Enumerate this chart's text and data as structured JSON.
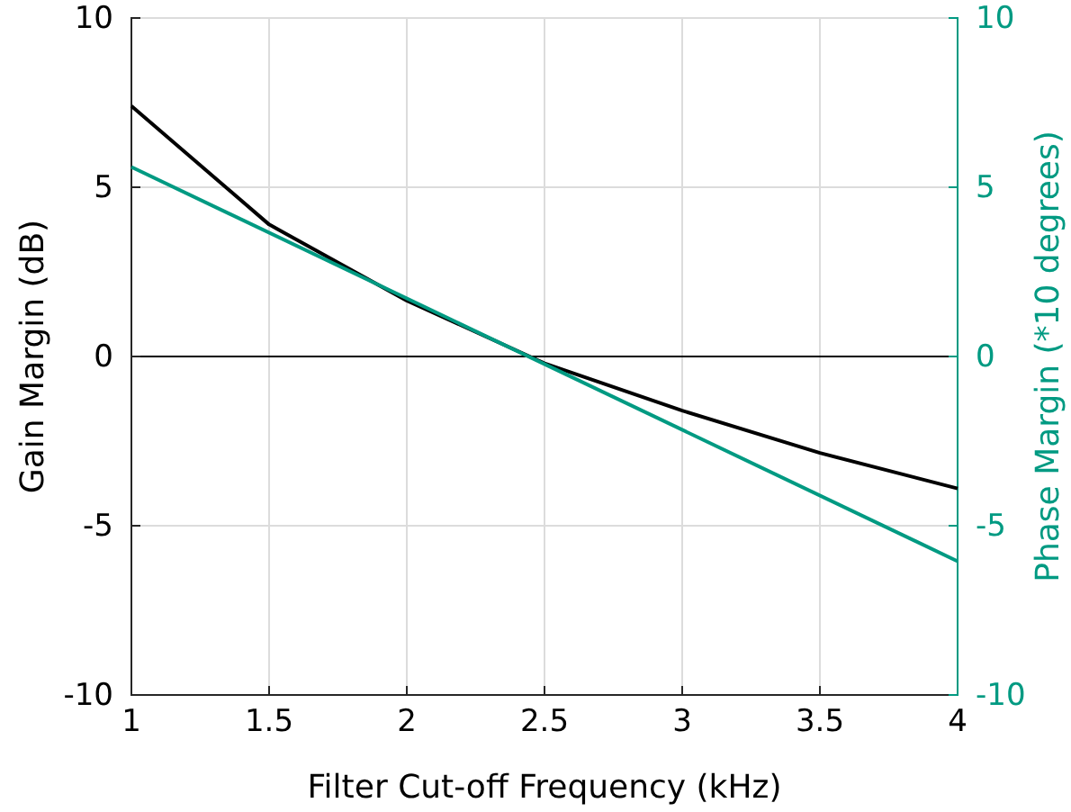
{
  "chart_data": {
    "type": "line",
    "xlabel": "Filter Cut-off Frequency (kHz)",
    "ylabel": "Gain Margin (dB)",
    "y2label": "Phase Margin (*10 degrees)",
    "xlim": [
      1,
      4
    ],
    "xticks": [
      1,
      1.5,
      2,
      2.5,
      3,
      3.5,
      4
    ],
    "ylim": [
      -10,
      10
    ],
    "yticks": [
      -10,
      -5,
      0,
      5,
      10
    ],
    "y2lim": [
      -10,
      10
    ],
    "y2ticks": [
      -10,
      -5,
      0,
      5,
      10
    ],
    "grid": true,
    "ref_lines": [
      {
        "axis": "y",
        "value": 0,
        "color": "#000000"
      }
    ],
    "series": [
      {
        "color": "#000000",
        "x": [
          1,
          1.5,
          2,
          2.5,
          3,
          3.5,
          4
        ],
        "values": [
          7.4,
          3.9,
          1.65,
          -0.2,
          -1.6,
          -2.85,
          -3.9
        ]
      },
      {
        "color": "#009a82",
        "axis": "y2",
        "x": [
          1,
          4
        ],
        "values": [
          5.6,
          -6.05
        ]
      }
    ]
  }
}
